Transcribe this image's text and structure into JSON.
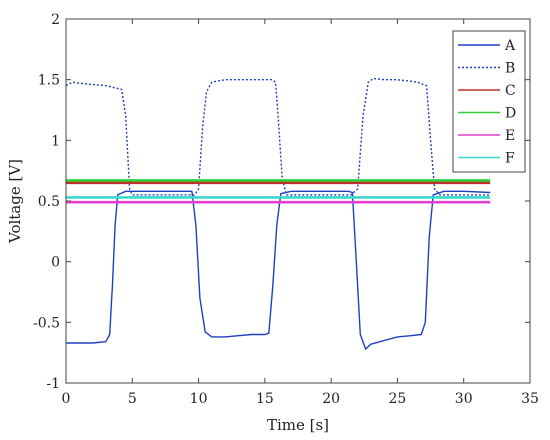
{
  "chart_data": {
    "type": "line",
    "title": "",
    "xlabel": "Time [s]",
    "ylabel": "Voltage [V]",
    "xlim": [
      0,
      35
    ],
    "ylim": [
      -1,
      2
    ],
    "x_ticks": [
      0,
      5,
      10,
      15,
      20,
      25,
      30,
      35
    ],
    "y_ticks": [
      -1,
      -0.5,
      0,
      0.5,
      1,
      1.5,
      2
    ],
    "x_tick_labels": [
      "0",
      "5",
      "10",
      "15",
      "20",
      "25",
      "30",
      "35"
    ],
    "y_tick_labels": [
      "-1",
      "-0.5",
      "0",
      "0.5",
      "1",
      "1.5",
      "2"
    ],
    "grid": false,
    "legend_position": "top-right",
    "series": [
      {
        "name": "A",
        "color": "#1f3fbf",
        "style": "solid",
        "x": [
          0,
          0.5,
          1,
          2,
          3,
          3.3,
          3.5,
          3.7,
          3.9,
          4.5,
          6,
          8,
          9.2,
          9.5,
          9.8,
          10.1,
          10.5,
          11,
          12,
          13,
          14,
          15,
          15.3,
          15.6,
          15.9,
          16.2,
          17,
          18,
          20,
          21.3,
          21.6,
          21.9,
          22.2,
          22.6,
          23,
          24,
          25,
          26,
          26.8,
          27.1,
          27.4,
          27.7,
          28.5,
          30,
          32
        ],
        "y": [
          -0.67,
          -0.67,
          -0.67,
          -0.67,
          -0.66,
          -0.6,
          -0.2,
          0.3,
          0.55,
          0.58,
          0.58,
          0.58,
          0.58,
          0.58,
          0.3,
          -0.3,
          -0.58,
          -0.62,
          -0.62,
          -0.61,
          -0.6,
          -0.6,
          -0.59,
          -0.2,
          0.3,
          0.56,
          0.58,
          0.58,
          0.58,
          0.58,
          0.57,
          0.0,
          -0.6,
          -0.72,
          -0.68,
          -0.65,
          -0.62,
          -0.61,
          -0.6,
          -0.5,
          0.2,
          0.55,
          0.58,
          0.58,
          0.57
        ]
      },
      {
        "name": "B",
        "color": "#1f3fbf",
        "style": "dashed",
        "x": [
          0,
          0.5,
          1,
          2,
          3,
          3.8,
          4.2,
          4.5,
          4.8,
          5,
          6,
          8,
          9.7,
          10,
          10.3,
          10.6,
          11,
          12,
          14,
          15.5,
          15.8,
          16,
          16.3,
          16.6,
          17,
          19,
          21.5,
          22,
          22.4,
          22.8,
          23.2,
          24,
          25,
          26.5,
          27.2,
          27.5,
          27.8,
          28.2,
          30,
          32
        ],
        "y": [
          1.45,
          1.48,
          1.47,
          1.46,
          1.45,
          1.43,
          1.42,
          1.2,
          0.6,
          0.55,
          0.55,
          0.55,
          0.55,
          0.6,
          1.1,
          1.4,
          1.48,
          1.5,
          1.5,
          1.5,
          1.48,
          1.2,
          0.7,
          0.55,
          0.55,
          0.55,
          0.55,
          0.6,
          1.2,
          1.48,
          1.51,
          1.5,
          1.5,
          1.48,
          1.45,
          1.0,
          0.6,
          0.55,
          0.55,
          0.55
        ]
      },
      {
        "name": "C",
        "color": "#c0302a",
        "style": "solid",
        "x": [
          0,
          32
        ],
        "y": [
          0.65,
          0.65
        ]
      },
      {
        "name": "D",
        "color": "#2fd13a",
        "style": "solid",
        "x": [
          0,
          32
        ],
        "y": [
          0.67,
          0.67
        ]
      },
      {
        "name": "E",
        "color": "#e23fd0",
        "style": "solid",
        "x": [
          0,
          32
        ],
        "y": [
          0.49,
          0.49
        ]
      },
      {
        "name": "F",
        "color": "#39d7d0",
        "style": "solid",
        "x": [
          0,
          32
        ],
        "y": [
          0.53,
          0.53
        ]
      }
    ]
  }
}
